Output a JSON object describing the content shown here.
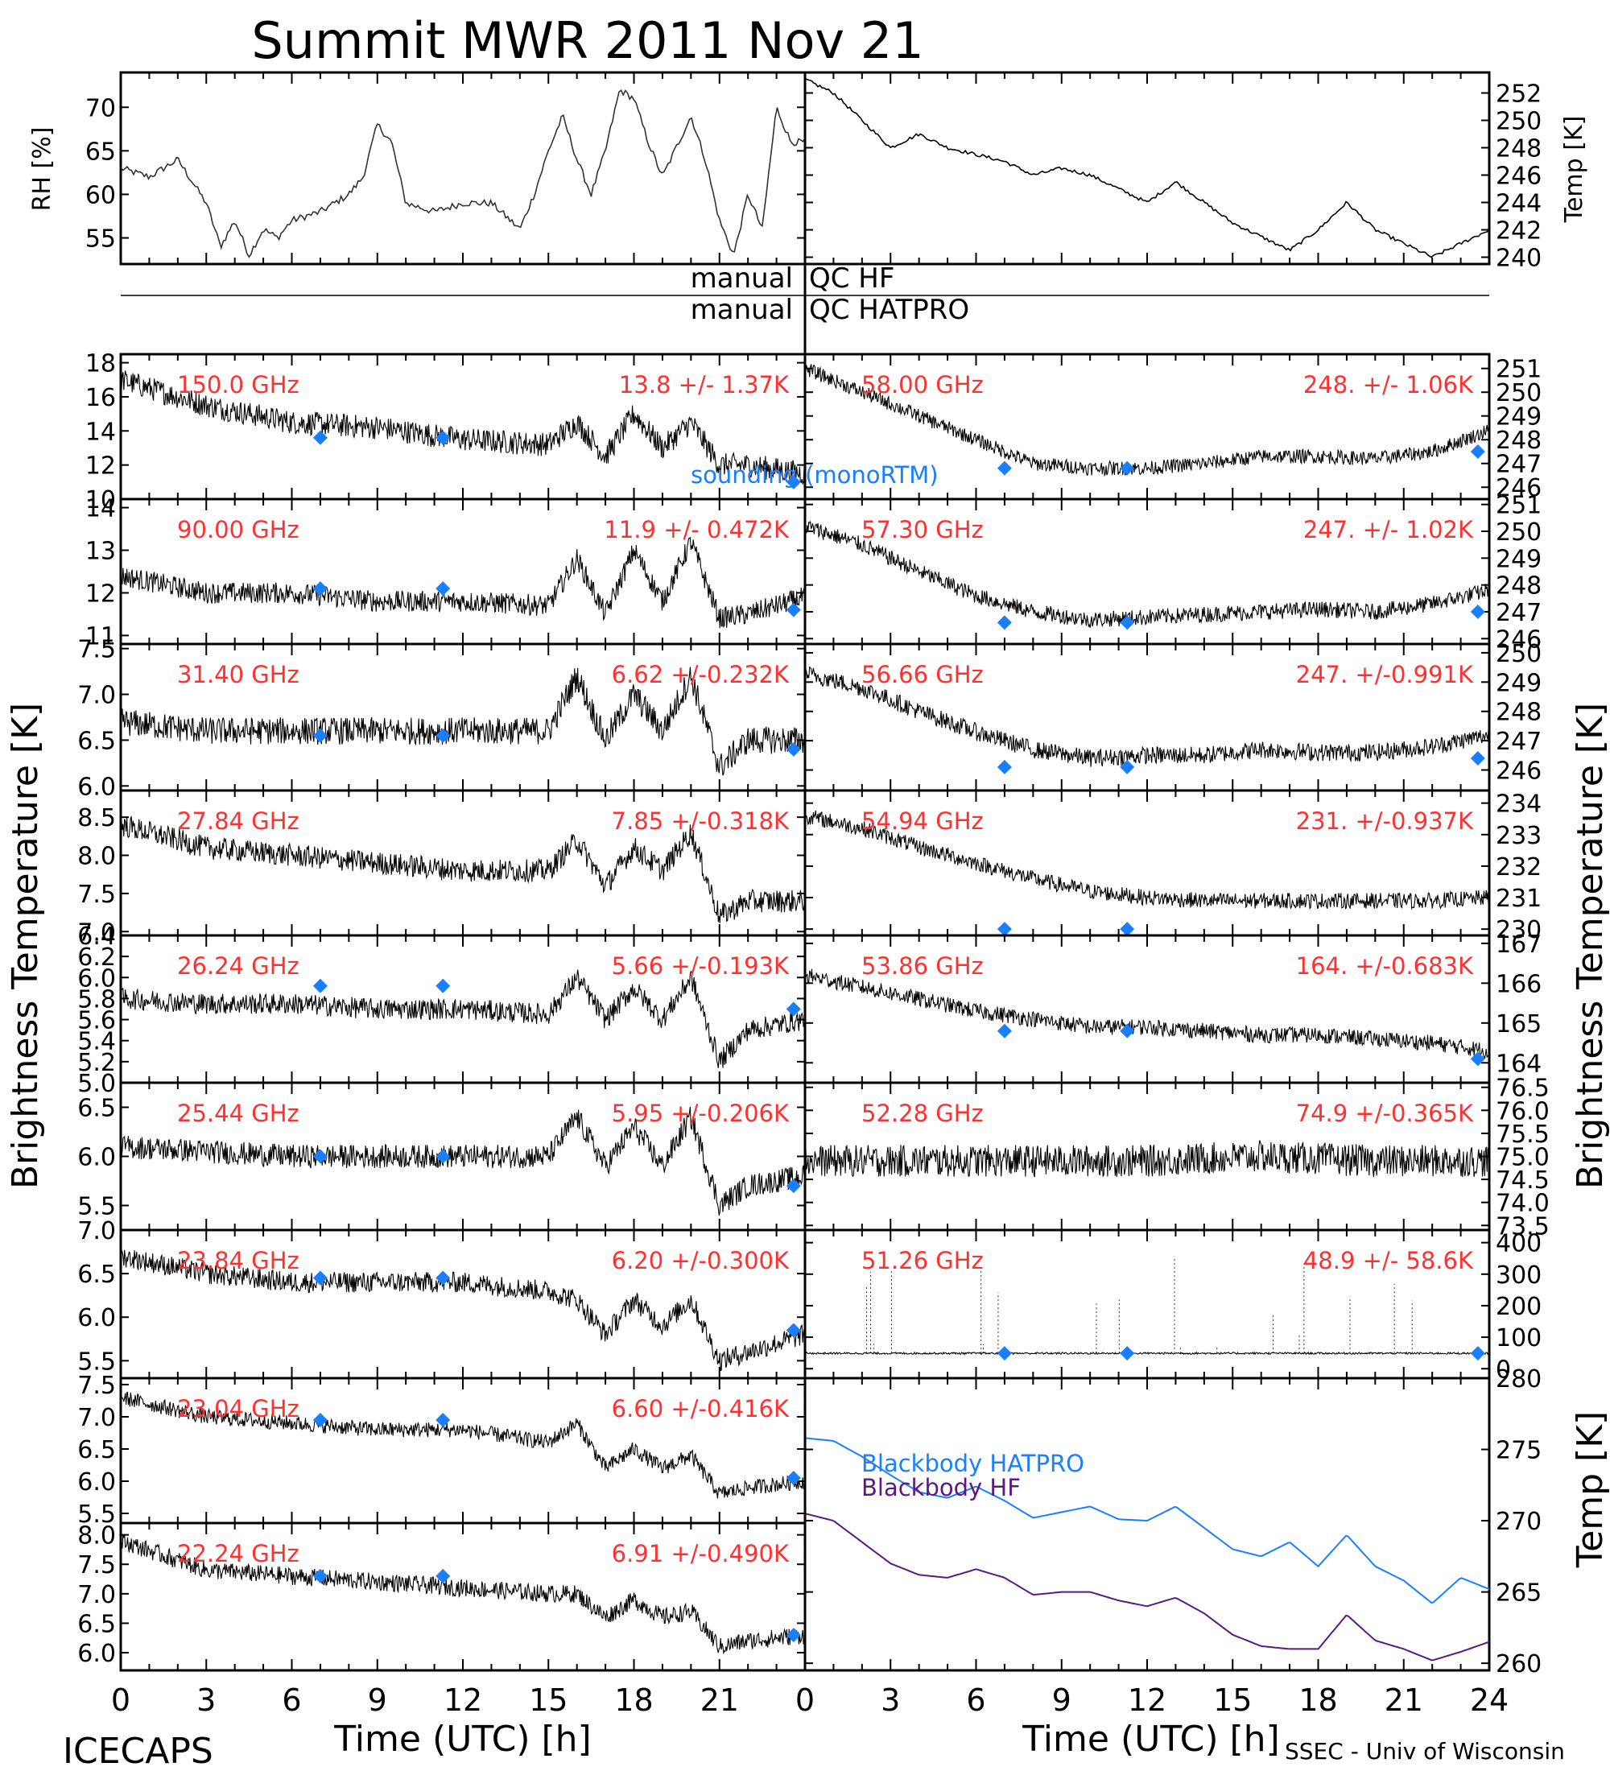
{
  "title": "Summit MWR 2011 Nov 21",
  "footer": {
    "left": "ICECAPS",
    "right": "SSEC - Univ of Wisconsin",
    "xlabel_left": "Time (UTC) [h]",
    "xlabel_right": "Time (UTC) [h]"
  },
  "side_labels": {
    "left_main": "Brightness Temperature [K]",
    "right_main": "Brightness Temperature [K]",
    "right_bottom": "Temp [K]"
  },
  "qc": {
    "hf_left": "manual",
    "hf_right": "QC HF",
    "hatpro_left": "manual",
    "hatpro_right": "QC HATPRO"
  },
  "legend": {
    "sounding": "sounding (monoRTM)",
    "bb_hatpro": "Blackbody HATPRO",
    "bb_hf": "Blackbody HF"
  },
  "colors": {
    "data": "#000000",
    "label": "#ff3030",
    "marker": "#1a7fff",
    "bb_hatpro": "#1a7fff",
    "bb_hf": "#5a1a82"
  },
  "chart_data": [
    {
      "type": "line",
      "panel": "rh",
      "ylabel": "RH [%]",
      "xlim": [
        0,
        24
      ],
      "ylim": [
        52,
        74
      ],
      "yticks": [
        "55",
        "60",
        "65",
        "70"
      ],
      "x": [
        0,
        1,
        2,
        3,
        3.5,
        4,
        4.5,
        5,
        5.5,
        6,
        7,
        8,
        8.5,
        9,
        9.5,
        10,
        11,
        12,
        13,
        14,
        14.5,
        15,
        15.5,
        16,
        16.5,
        17,
        17.5,
        18,
        18.5,
        19,
        20,
        20.5,
        21,
        21.5,
        22,
        22.5,
        23,
        23.5
      ],
      "y": [
        63,
        62,
        64,
        59,
        54,
        57,
        53,
        56,
        55,
        57,
        58,
        60,
        62,
        68,
        66,
        59,
        58,
        59,
        59,
        56,
        60,
        65,
        69,
        64,
        60,
        65,
        72,
        71,
        66,
        62,
        69,
        64,
        57,
        53,
        60,
        56,
        70,
        66
      ]
    },
    {
      "type": "line",
      "panel": "temp",
      "ylabel": "Temp [K]",
      "xlim": [
        0,
        24
      ],
      "ylim": [
        239.5,
        253.5
      ],
      "yticks": [
        "240",
        "242",
        "244",
        "246",
        "248",
        "250",
        "252"
      ],
      "x": [
        0,
        1,
        2,
        3,
        4,
        5,
        6,
        7,
        8,
        9,
        10,
        11,
        12,
        13,
        14,
        15,
        16,
        17,
        18,
        19,
        20,
        21,
        22,
        23,
        24
      ],
      "y": [
        253,
        252,
        250,
        248,
        249,
        248,
        247.5,
        247,
        246,
        246.5,
        246,
        245,
        244,
        245.5,
        244,
        242.5,
        241.5,
        240.5,
        242,
        244,
        242,
        241,
        240,
        241,
        242
      ]
    },
    {
      "type": "scatter",
      "panel": "150.0 GHz",
      "label": "150.0 GHz",
      "stat": "13.8 +/-  1.37K",
      "ylim": [
        10,
        18.5
      ],
      "yticks": [
        "10",
        "12",
        "14",
        "16",
        "18"
      ],
      "noise": 0.7,
      "x": [
        0,
        3,
        6,
        9,
        12,
        15,
        16,
        17,
        18,
        19,
        20,
        21,
        22,
        24
      ],
      "y": [
        17,
        15.5,
        14.5,
        14.2,
        13.5,
        13.2,
        14.5,
        12.5,
        15,
        13,
        14.5,
        12,
        12,
        11.5
      ],
      "markers": {
        "x": [
          7,
          11.3,
          23.6
        ],
        "y": [
          13.6,
          13.6,
          11.0
        ]
      }
    },
    {
      "type": "scatter",
      "panel": "90.00 GHz",
      "label": "90.00 GHz",
      "stat": "11.9 +/- 0.472K",
      "ylim": [
        10.8,
        14.2
      ],
      "yticks": [
        "11",
        "12",
        "13",
        "14"
      ],
      "noise": 0.25,
      "x": [
        0,
        3,
        6,
        9,
        12,
        15,
        16,
        17,
        18,
        19,
        20,
        21,
        22,
        24
      ],
      "y": [
        12.4,
        12,
        12,
        11.8,
        11.8,
        11.7,
        12.8,
        11.5,
        13,
        11.8,
        13.2,
        11.4,
        11.5,
        11.9
      ],
      "markers": {
        "x": [
          7,
          11.3,
          23.6
        ],
        "y": [
          12.1,
          12.1,
          11.6
        ]
      }
    },
    {
      "type": "scatter",
      "panel": "31.40 GHz",
      "label": "31.40 GHz",
      "stat": "6.62 +/-0.232K",
      "ylim": [
        5.95,
        7.55
      ],
      "yticks": [
        "6.0",
        "6.5",
        "7.0",
        "7.5"
      ],
      "noise": 0.15,
      "x": [
        0,
        3,
        6,
        9,
        12,
        15,
        16,
        17,
        18,
        19,
        20,
        21,
        22,
        24
      ],
      "y": [
        6.7,
        6.6,
        6.6,
        6.6,
        6.6,
        6.6,
        7.2,
        6.5,
        7,
        6.6,
        7.2,
        6.2,
        6.5,
        6.5
      ],
      "markers": {
        "x": [
          7,
          11.3,
          23.6
        ],
        "y": [
          6.55,
          6.55,
          6.4
        ]
      }
    },
    {
      "type": "scatter",
      "panel": "27.84 GHz",
      "label": "27.84 GHz",
      "stat": "7.85 +/-0.318K",
      "ylim": [
        6.95,
        8.85
      ],
      "yticks": [
        "7.0",
        "7.5",
        "8.0",
        "8.5"
      ],
      "noise": 0.15,
      "x": [
        0,
        3,
        6,
        9,
        12,
        15,
        16,
        17,
        18,
        19,
        20,
        21,
        22,
        24
      ],
      "y": [
        8.4,
        8.1,
        8,
        7.9,
        7.8,
        7.8,
        8.2,
        7.6,
        8.1,
        7.8,
        8.3,
        7.2,
        7.4,
        7.4
      ],
      "markers": {
        "x": [],
        "y": []
      }
    },
    {
      "type": "scatter",
      "panel": "26.24 GHz",
      "label": "26.24 GHz",
      "stat": "5.66 +/-0.193K",
      "ylim": [
        5.0,
        6.4
      ],
      "yticks": [
        "5.0",
        "5.2",
        "5.4",
        "5.6",
        "5.8",
        "6.0",
        "6.2",
        "6.4"
      ],
      "noise": 0.1,
      "x": [
        0,
        3,
        6,
        9,
        12,
        15,
        16,
        17,
        18,
        19,
        20,
        21,
        22,
        24
      ],
      "y": [
        5.8,
        5.75,
        5.75,
        5.7,
        5.7,
        5.65,
        6.0,
        5.6,
        5.9,
        5.6,
        6.0,
        5.2,
        5.5,
        5.6
      ],
      "markers": {
        "x": [
          7,
          11.3,
          23.6
        ],
        "y": [
          5.92,
          5.92,
          5.7
        ]
      }
    },
    {
      "type": "scatter",
      "panel": "25.44 GHz",
      "label": "25.44 GHz",
      "stat": "5.95 +/-0.206K",
      "ylim": [
        5.25,
        6.75
      ],
      "yticks": [
        "5.5",
        "6.0",
        "6.5"
      ],
      "noise": 0.12,
      "x": [
        0,
        3,
        6,
        9,
        12,
        15,
        16,
        17,
        18,
        19,
        20,
        21,
        22,
        24
      ],
      "y": [
        6.1,
        6.05,
        6.0,
        6.0,
        6.0,
        6.0,
        6.4,
        5.9,
        6.3,
        5.9,
        6.4,
        5.5,
        5.7,
        5.8
      ],
      "markers": {
        "x": [
          7,
          11.3,
          23.6
        ],
        "y": [
          6.0,
          6.0,
          5.7
        ]
      }
    },
    {
      "type": "scatter",
      "panel": "23.84 GHz",
      "label": "23.84 GHz",
      "stat": "6.20 +/-0.300K",
      "ylim": [
        5.3,
        7.0
      ],
      "yticks": [
        "5.5",
        "6.0",
        "6.5",
        "7.0"
      ],
      "noise": 0.12,
      "x": [
        0,
        3,
        6,
        9,
        12,
        15,
        16,
        17,
        18,
        19,
        20,
        21,
        22,
        24
      ],
      "y": [
        6.7,
        6.5,
        6.4,
        6.4,
        6.4,
        6.3,
        6.2,
        5.8,
        6.2,
        5.9,
        6.2,
        5.5,
        5.6,
        5.8
      ],
      "markers": {
        "x": [
          7,
          11.3,
          23.6
        ],
        "y": [
          6.45,
          6.45,
          5.85
        ]
      }
    },
    {
      "type": "scatter",
      "panel": "23.04 GHz",
      "label": "23.04 GHz",
      "stat": "6.60 +/-0.416K",
      "ylim": [
        5.35,
        7.6
      ],
      "yticks": [
        "5.5",
        "6.0",
        "6.5",
        "7.0",
        "7.5"
      ],
      "noise": 0.12,
      "x": [
        0,
        3,
        6,
        9,
        12,
        15,
        16,
        17,
        18,
        19,
        20,
        21,
        22,
        24
      ],
      "y": [
        7.3,
        7.0,
        6.9,
        6.8,
        6.8,
        6.6,
        6.9,
        6.2,
        6.5,
        6.2,
        6.4,
        5.8,
        5.9,
        6.0
      ],
      "markers": {
        "x": [
          7,
          11.3,
          23.6
        ],
        "y": [
          6.95,
          6.95,
          6.05
        ]
      }
    },
    {
      "type": "scatter",
      "panel": "22.24 GHz",
      "label": "22.24 GHz",
      "stat": "6.91 +/-0.490K",
      "ylim": [
        5.7,
        8.2
      ],
      "yticks": [
        "6.0",
        "6.5",
        "7.0",
        "7.5",
        "8.0"
      ],
      "noise": 0.15,
      "x": [
        0,
        3,
        6,
        9,
        12,
        15,
        16,
        17,
        18,
        19,
        20,
        21,
        22,
        24
      ],
      "y": [
        7.9,
        7.4,
        7.3,
        7.2,
        7.1,
        7.0,
        7.0,
        6.6,
        6.9,
        6.6,
        6.7,
        6.1,
        6.2,
        6.3
      ],
      "markers": {
        "x": [
          7,
          11.3,
          23.6
        ],
        "y": [
          7.3,
          7.3,
          6.3
        ]
      }
    },
    {
      "type": "scatter",
      "panel": "58.00 GHz",
      "label": "58.00 GHz",
      "stat": "248. +/- 1.06K",
      "ylim": [
        245.5,
        251.6
      ],
      "yticks": [
        "246",
        "247",
        "248",
        "249",
        "250",
        "251"
      ],
      "noise": 0.3,
      "x": [
        0,
        2,
        4,
        6,
        8,
        10,
        12,
        14,
        16,
        18,
        20,
        22,
        24
      ],
      "y": [
        251,
        250,
        249,
        248,
        247,
        246.8,
        246.8,
        247,
        247.3,
        247.3,
        247.2,
        247.5,
        248.4
      ],
      "markers": {
        "x": [
          7,
          11.3,
          23.6
        ],
        "y": [
          246.8,
          246.8,
          247.5
        ]
      }
    },
    {
      "type": "scatter",
      "panel": "57.30 GHz",
      "label": "57.30 GHz",
      "stat": "247. +/- 1.02K",
      "ylim": [
        245.8,
        251.2
      ],
      "yticks": [
        "246",
        "247",
        "248",
        "249",
        "250",
        "251"
      ],
      "noise": 0.3,
      "x": [
        0,
        2,
        4,
        6,
        8,
        10,
        12,
        14,
        16,
        18,
        20,
        22,
        24
      ],
      "y": [
        250.2,
        249.5,
        248.5,
        247.6,
        247,
        246.7,
        246.8,
        246.9,
        247,
        247.1,
        247,
        247.3,
        247.8
      ],
      "markers": {
        "x": [
          7,
          11.3,
          23.6
        ],
        "y": [
          246.6,
          246.6,
          247.0
        ]
      }
    },
    {
      "type": "scatter",
      "panel": "56.66 GHz",
      "label": "56.66 GHz",
      "stat": "247. +/-0.991K",
      "ylim": [
        245.3,
        250.3
      ],
      "yticks": [
        "246",
        "247",
        "248",
        "249",
        "250"
      ],
      "noise": 0.3,
      "x": [
        0,
        2,
        4,
        6,
        8,
        10,
        12,
        14,
        16,
        18,
        20,
        22,
        24
      ],
      "y": [
        249.3,
        248.8,
        248,
        247.3,
        246.7,
        246.4,
        246.5,
        246.5,
        246.7,
        246.6,
        246.6,
        246.8,
        247.2
      ],
      "markers": {
        "x": [
          7,
          11.3,
          23.6
        ],
        "y": [
          246.1,
          246.1,
          246.4
        ]
      }
    },
    {
      "type": "scatter",
      "panel": "54.94 GHz",
      "label": "54.94 GHz",
      "stat": "231. +/-0.937K",
      "ylim": [
        229.8,
        234.4
      ],
      "yticks": [
        "230",
        "231",
        "232",
        "233",
        "234"
      ],
      "noise": 0.25,
      "x": [
        0,
        2,
        4,
        6,
        8,
        10,
        12,
        14,
        16,
        18,
        20,
        22,
        24
      ],
      "y": [
        233.6,
        233.2,
        232.6,
        232.1,
        231.6,
        231.2,
        231.0,
        230.9,
        230.9,
        230.9,
        230.9,
        230.9,
        231.0
      ],
      "markers": {
        "x": [
          7,
          11.3
        ],
        "y": [
          230.0,
          230.0
        ]
      }
    },
    {
      "type": "scatter",
      "panel": "53.86 GHz",
      "label": "53.86 GHz",
      "stat": "164. +/-0.683K",
      "ylim": [
        163.5,
        167.2
      ],
      "yticks": [
        "164",
        "165",
        "166",
        "167"
      ],
      "noise": 0.2,
      "x": [
        0,
        2,
        4,
        6,
        8,
        10,
        12,
        14,
        16,
        18,
        20,
        22,
        24
      ],
      "y": [
        166.2,
        165.9,
        165.6,
        165.3,
        165.1,
        164.9,
        164.9,
        164.8,
        164.7,
        164.7,
        164.6,
        164.5,
        164.3
      ],
      "markers": {
        "x": [
          7,
          11.3,
          23.6
        ],
        "y": [
          164.8,
          164.8,
          164.1
        ]
      }
    },
    {
      "type": "scatter",
      "panel": "52.28 GHz",
      "label": "52.28 GHz",
      "stat": "74.9 +/-0.365K",
      "ylim": [
        73.4,
        76.6
      ],
      "yticks": [
        "73.5",
        "74.0",
        "74.5",
        "75.0",
        "75.5",
        "76.0",
        "76.5"
      ],
      "noise": 0.35,
      "x": [
        0,
        4,
        8,
        12,
        16,
        20,
        24
      ],
      "y": [
        74.9,
        74.9,
        74.9,
        74.9,
        75.0,
        74.9,
        74.9
      ],
      "markers": {
        "x": [],
        "y": []
      }
    },
    {
      "type": "scatter",
      "panel": "51.26 GHz",
      "label": "51.26 GHz",
      "stat": "48.9 +/- 58.6K",
      "ylim": [
        -30,
        440
      ],
      "yticks": [
        "0",
        "100",
        "200",
        "300",
        "400"
      ],
      "noise": 3,
      "x": [
        0,
        24
      ],
      "y": [
        48.9,
        48.9
      ],
      "markers": {
        "x": [
          7,
          11.3,
          23.6
        ],
        "y": [
          48.9,
          48.9,
          48.9
        ]
      }
    },
    {
      "type": "line",
      "panel": "blackbody",
      "ylabel": "Temp [K]",
      "ylim": [
        259.5,
        280
      ],
      "yticks": [
        "260",
        "265",
        "270",
        "275",
        "280"
      ],
      "series": [
        {
          "name": "Blackbody HATPRO",
          "x": [
            0,
            1,
            2,
            3,
            4,
            5,
            6,
            7,
            8,
            9,
            10,
            11,
            12,
            13,
            14,
            15,
            16,
            17,
            18,
            19,
            20,
            21,
            22,
            23,
            24
          ],
          "y": [
            275.8,
            275.6,
            274.5,
            273.2,
            272,
            271.6,
            272.4,
            271.4,
            270.2,
            270.6,
            271,
            270.1,
            270,
            271,
            269.5,
            268,
            267.5,
            268.5,
            266.8,
            269,
            266.8,
            265.8,
            264.2,
            266,
            265.2
          ]
        },
        {
          "name": "Blackbody HF",
          "x": [
            0,
            1,
            2,
            3,
            4,
            5,
            6,
            7,
            8,
            9,
            10,
            11,
            12,
            13,
            14,
            15,
            16,
            17,
            18,
            19,
            20,
            21,
            22,
            23,
            24
          ],
          "y": [
            270.5,
            270,
            268.5,
            267,
            266.2,
            266,
            266.6,
            266,
            264.8,
            265,
            265,
            264.4,
            264,
            264.6,
            263.5,
            262,
            261.2,
            261,
            261,
            263.4,
            261.6,
            261,
            260.2,
            260.8,
            261.5
          ]
        }
      ]
    }
  ]
}
